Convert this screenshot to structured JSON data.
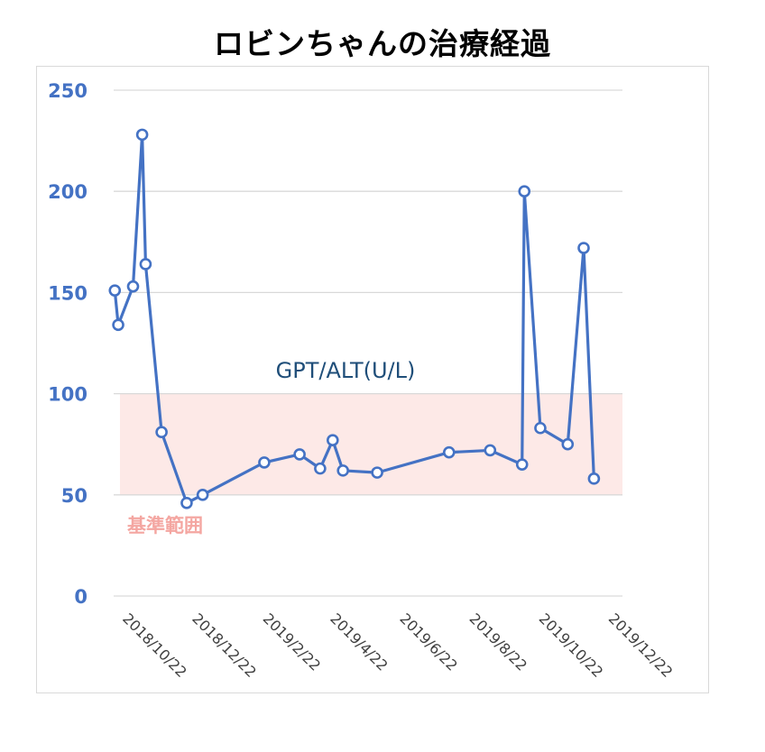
{
  "chart_data": {
    "type": "line",
    "title": "ロビンちゃんの治療経過",
    "series": [
      {
        "name": "GPT/ALT(U/L)",
        "color": "#4472c4",
        "points": [
          {
            "x": "2018-10-08",
            "y": 151
          },
          {
            "x": "2018-10-11",
            "y": 134
          },
          {
            "x": "2018-10-24",
            "y": 153
          },
          {
            "x": "2018-11-01",
            "y": 228
          },
          {
            "x": "2018-11-04",
            "y": 164
          },
          {
            "x": "2018-11-18",
            "y": 81
          },
          {
            "x": "2018-12-10",
            "y": 46
          },
          {
            "x": "2018-12-24",
            "y": 50
          },
          {
            "x": "2019-02-16",
            "y": 66
          },
          {
            "x": "2019-03-19",
            "y": 70
          },
          {
            "x": "2019-04-06",
            "y": 63
          },
          {
            "x": "2019-04-17",
            "y": 77
          },
          {
            "x": "2019-04-26",
            "y": 62
          },
          {
            "x": "2019-05-26",
            "y": 61
          },
          {
            "x": "2019-07-28",
            "y": 71
          },
          {
            "x": "2019-09-02",
            "y": 72
          },
          {
            "x": "2019-09-30",
            "y": 65
          },
          {
            "x": "2019-10-02",
            "y": 200
          },
          {
            "x": "2019-10-16",
            "y": 83
          },
          {
            "x": "2019-11-09",
            "y": 75
          },
          {
            "x": "2019-11-23",
            "y": 172
          },
          {
            "x": "2019-12-02",
            "y": 58
          }
        ]
      }
    ],
    "reference_band": {
      "label": "基準範囲",
      "min": 50,
      "max": 100,
      "color": "#fde9e7",
      "label_color": "#f4a6a1"
    },
    "x_axis": {
      "type": "date",
      "range": [
        "2018-10-07",
        "2019-12-27"
      ],
      "ticks": [
        "2018/10/22",
        "2018/12/22",
        "2019/2/22",
        "2019/4/22",
        "2019/6/22",
        "2019/8/22",
        "2019/10/22",
        "2019/12/22"
      ],
      "tick_dates": [
        "2018-10-22",
        "2018-12-22",
        "2019-02-22",
        "2019-04-22",
        "2019-06-22",
        "2019-08-22",
        "2019-10-22",
        "2019-12-22"
      ]
    },
    "y_axis": {
      "min": 0,
      "max": 250,
      "ticks": [
        "0",
        "50",
        "100",
        "150",
        "200",
        "250"
      ],
      "tick_values": [
        0,
        50,
        100,
        150,
        200,
        250
      ]
    },
    "grid": true,
    "colors": {
      "axis_label": "#4472c4",
      "series_label": "#1f4e79",
      "grid": "#d9d9d9"
    }
  }
}
